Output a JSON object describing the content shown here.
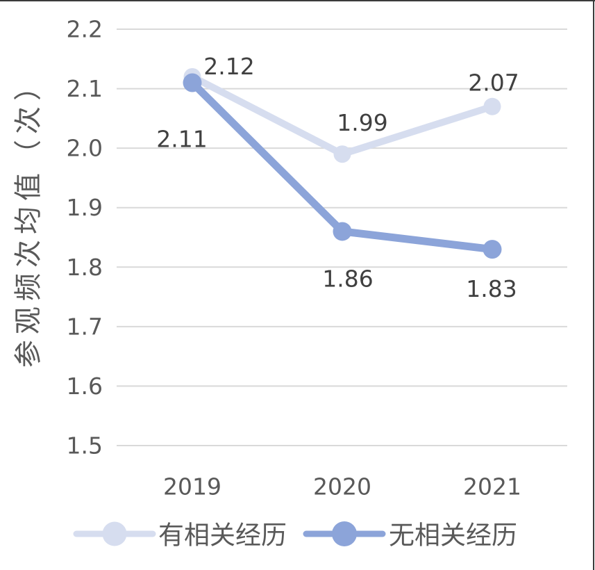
{
  "page": {
    "background": "#ffffff",
    "frame_border_color": "#3a3a3a"
  },
  "chart_data": {
    "type": "line",
    "title": "",
    "xlabel": "",
    "ylabel": "参观频次均值（次）",
    "categories": [
      "2019",
      "2020",
      "2021"
    ],
    "series": [
      {
        "name": "有相关经历",
        "values": [
          2.12,
          1.99,
          2.07
        ],
        "labels": [
          "2.12",
          "1.99",
          "2.07"
        ],
        "color": "#d6ddef",
        "line_width": 10,
        "marker_radius": 12.5,
        "label_offsets": [
          [
            53,
            -15
          ],
          [
            29,
            -45
          ],
          [
            2,
            -34
          ]
        ]
      },
      {
        "name": "无相关经历",
        "values": [
          2.11,
          1.86,
          1.83
        ],
        "labels": [
          "2.11",
          "1.86",
          "1.83"
        ],
        "color": "#8ca4d9",
        "line_width": 11,
        "marker_radius": 13.5,
        "label_offsets": [
          [
            -15,
            81
          ],
          [
            8,
            68
          ],
          [
            -1,
            57
          ]
        ]
      }
    ],
    "y_tick_labels": [
      "2.2",
      "2.1",
      "2.0",
      "1.9",
      "1.8",
      "1.7",
      "1.6",
      "1.5"
    ],
    "y_ticks": [
      2.2,
      2.1,
      2.0,
      1.9,
      1.8,
      1.7,
      1.6,
      1.5
    ],
    "ylim": [
      1.5,
      2.2
    ],
    "grid": true,
    "gridline_color": "#d9d9d9",
    "tick_text_color": "#595959",
    "data_label_color": "#404040",
    "legend_text_color": "#595959",
    "legend_position": "bottom"
  }
}
